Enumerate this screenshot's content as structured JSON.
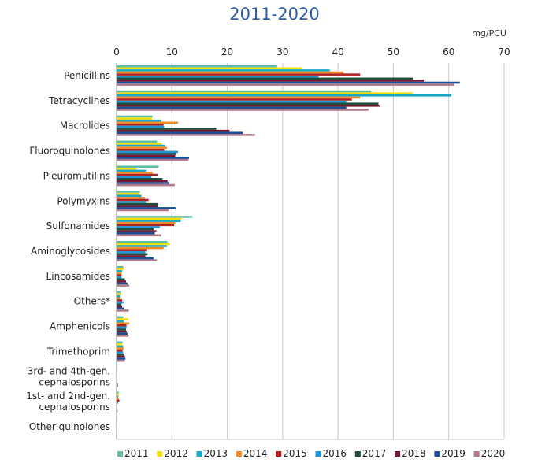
{
  "chart_data": {
    "type": "bar",
    "orientation": "horizontal",
    "title": "2011-2020",
    "unit": "mg/PCU",
    "xlim": [
      0,
      70
    ],
    "xticks": [
      "0",
      "10",
      "20",
      "30",
      "40",
      "50",
      "60",
      "70"
    ],
    "grid": true,
    "legend_position": "bottom",
    "categories": [
      "Penicillins",
      "Tetracyclines",
      "Macrolides",
      "Fluoroquinolones",
      "Pleuromutilins",
      "Polymyxins",
      "Sulfonamides",
      "Aminoglycosides",
      "Lincosamides",
      "Others*",
      "Amphenicols",
      "Trimethoprim",
      "3rd- and 4th-gen. cephalosporins",
      "1st- and 2nd-gen. cephalosporins",
      "Other quinolones"
    ],
    "series": [
      {
        "name": "2011",
        "color": "#5bbfa8",
        "values": [
          29,
          46,
          6.5,
          7.3,
          7.6,
          4.2,
          13.7,
          9.2,
          1.2,
          0.7,
          1.2,
          1.1,
          0.1,
          0.4,
          0.1
        ]
      },
      {
        "name": "2012",
        "color": "#f5df00",
        "values": [
          33.5,
          53.5,
          6.4,
          8.2,
          3.6,
          4.1,
          11.7,
          9.6,
          1.3,
          0.8,
          2.1,
          1.0,
          0.1,
          0.4,
          0.1
        ]
      },
      {
        "name": "2013",
        "color": "#19a7c4",
        "values": [
          38.5,
          60.5,
          8.1,
          8.7,
          5.3,
          4.5,
          11.6,
          9.1,
          1.0,
          0.6,
          1.3,
          1.2,
          0.1,
          0.3,
          0.1
        ]
      },
      {
        "name": "2014",
        "color": "#f08c28",
        "values": [
          41,
          44,
          11.1,
          9.1,
          6.5,
          5.1,
          10.6,
          8.5,
          0.9,
          0.6,
          2.3,
          1.3,
          0.1,
          0.4,
          0.1
        ]
      },
      {
        "name": "2015",
        "color": "#b22222",
        "values": [
          44,
          42.5,
          8.5,
          8.6,
          7.4,
          5.8,
          10.4,
          5.4,
          0.9,
          1.0,
          1.8,
          1.1,
          0.1,
          0.5,
          0.1
        ]
      },
      {
        "name": "2016",
        "color": "#2196d3",
        "values": [
          36.5,
          41.5,
          8.6,
          11.1,
          6.3,
          5.3,
          7.8,
          5.2,
          0.9,
          1.3,
          1.8,
          1.2,
          0.1,
          0.3,
          0.1
        ]
      },
      {
        "name": "2017",
        "color": "#1e4d3c",
        "values": [
          53.5,
          47.3,
          18,
          10.8,
          8.3,
          7.5,
          6.7,
          5.6,
          1.5,
          0.9,
          1.7,
          1.3,
          0.1,
          0.1,
          0.1
        ]
      },
      {
        "name": "2018",
        "color": "#7a1530",
        "values": [
          55.5,
          47.5,
          20.4,
          10.6,
          9.2,
          7.4,
          7.2,
          5.2,
          1.7,
          1.0,
          1.8,
          1.5,
          0.1,
          0.1,
          0.1
        ]
      },
      {
        "name": "2019",
        "color": "#1a4f96",
        "values": [
          62,
          41.5,
          22.8,
          13.1,
          9.5,
          10.7,
          6.9,
          6.7,
          2.0,
          1.3,
          2.0,
          1.6,
          0.2,
          0.1,
          0.1
        ]
      },
      {
        "name": "2020",
        "color": "#b07a8c",
        "values": [
          61,
          45.5,
          25,
          13.0,
          10.5,
          9.4,
          8.1,
          7.3,
          2.3,
          2.2,
          2.2,
          1.5,
          0.3,
          0.2,
          0.1
        ]
      }
    ]
  }
}
